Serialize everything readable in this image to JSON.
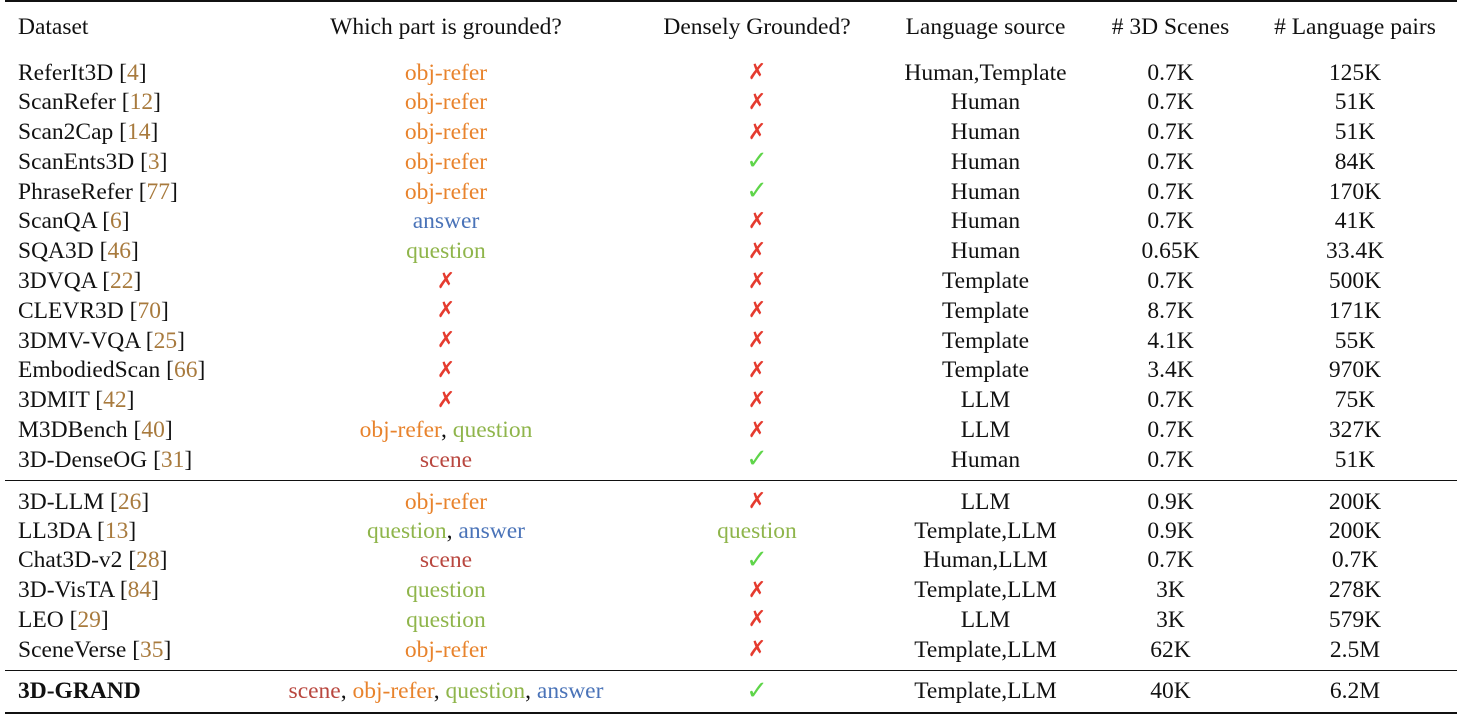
{
  "headers": [
    "Dataset",
    "Which part is grounded?",
    "Densely Grounded?",
    "Language source",
    "# 3D Scenes",
    "# Language pairs"
  ],
  "groups": [
    [
      {
        "name": "ReferIt3D",
        "ref": "4",
        "grounded": [
          {
            "t": "obj-refer",
            "c": "obj"
          }
        ],
        "dense": "cross",
        "source": "Human,Template",
        "scenes": "0.7K",
        "pairs": "125K"
      },
      {
        "name": "ScanRefer",
        "ref": "12",
        "grounded": [
          {
            "t": "obj-refer",
            "c": "obj"
          }
        ],
        "dense": "cross",
        "source": "Human",
        "scenes": "0.7K",
        "pairs": "51K"
      },
      {
        "name": "Scan2Cap",
        "ref": "14",
        "grounded": [
          {
            "t": "obj-refer",
            "c": "obj"
          }
        ],
        "dense": "cross",
        "source": "Human",
        "scenes": "0.7K",
        "pairs": "51K"
      },
      {
        "name": "ScanEnts3D",
        "ref": "3",
        "grounded": [
          {
            "t": "obj-refer",
            "c": "obj"
          }
        ],
        "dense": "check",
        "source": "Human",
        "scenes": "0.7K",
        "pairs": "84K"
      },
      {
        "name": "PhraseRefer",
        "ref": "77",
        "grounded": [
          {
            "t": "obj-refer",
            "c": "obj"
          }
        ],
        "dense": "check",
        "source": "Human",
        "scenes": "0.7K",
        "pairs": "170K"
      },
      {
        "name": "ScanQA",
        "ref": "6",
        "grounded": [
          {
            "t": "answer",
            "c": "ans"
          }
        ],
        "dense": "cross",
        "source": "Human",
        "scenes": "0.7K",
        "pairs": "41K"
      },
      {
        "name": "SQA3D",
        "ref": "46",
        "grounded": [
          {
            "t": "question",
            "c": "q"
          }
        ],
        "dense": "cross",
        "source": "Human",
        "scenes": "0.65K",
        "pairs": "33.4K"
      },
      {
        "name": "3DVQA",
        "ref": "22",
        "grounded": "cross",
        "dense": "cross",
        "source": "Template",
        "scenes": "0.7K",
        "pairs": "500K"
      },
      {
        "name": "CLEVR3D",
        "ref": "70",
        "grounded": "cross",
        "dense": "cross",
        "source": "Template",
        "scenes": "8.7K",
        "pairs": "171K"
      },
      {
        "name": "3DMV-VQA",
        "ref": "25",
        "grounded": "cross",
        "dense": "cross",
        "source": "Template",
        "scenes": "4.1K",
        "pairs": "55K"
      },
      {
        "name": "EmbodiedScan",
        "ref": "66",
        "grounded": "cross",
        "dense": "cross",
        "source": "Template",
        "scenes": "3.4K",
        "pairs": "970K"
      },
      {
        "name": "3DMIT",
        "ref": "42",
        "grounded": "cross",
        "dense": "cross",
        "source": "LLM",
        "scenes": "0.7K",
        "pairs": "75K"
      },
      {
        "name": "M3DBench",
        "ref": "40",
        "grounded": [
          {
            "t": "obj-refer",
            "c": "obj"
          },
          {
            "t": "question",
            "c": "q"
          }
        ],
        "dense": "cross",
        "source": "LLM",
        "scenes": "0.7K",
        "pairs": "327K"
      },
      {
        "name": "3D-DenseOG",
        "ref": "31",
        "grounded": [
          {
            "t": "scene",
            "c": "scene"
          }
        ],
        "dense": "check",
        "source": "Human",
        "scenes": "0.7K",
        "pairs": "51K"
      }
    ],
    [
      {
        "name": "3D-LLM",
        "ref": "26",
        "grounded": [
          {
            "t": "obj-refer",
            "c": "obj"
          }
        ],
        "dense": "cross",
        "source": "LLM",
        "scenes": "0.9K",
        "pairs": "200K"
      },
      {
        "name": "LL3DA",
        "ref": "13",
        "grounded": [
          {
            "t": "question",
            "c": "q"
          },
          {
            "t": "answer",
            "c": "ans"
          }
        ],
        "dense": {
          "t": "question",
          "c": "q"
        },
        "source": "Template,LLM",
        "scenes": "0.9K",
        "pairs": "200K"
      },
      {
        "name": "Chat3D-v2",
        "ref": "28",
        "grounded": [
          {
            "t": "scene",
            "c": "scene"
          }
        ],
        "dense": "check",
        "source": "Human,LLM",
        "scenes": "0.7K",
        "pairs": "0.7K"
      },
      {
        "name": "3D-VisTA",
        "ref": "84",
        "grounded": [
          {
            "t": "question",
            "c": "q"
          }
        ],
        "dense": "cross",
        "source": "Template,LLM",
        "scenes": "3K",
        "pairs": "278K"
      },
      {
        "name": "LEO",
        "ref": "29",
        "grounded": [
          {
            "t": "question",
            "c": "q"
          }
        ],
        "dense": "cross",
        "source": "LLM",
        "scenes": "3K",
        "pairs": "579K"
      },
      {
        "name": "SceneVerse",
        "ref": "35",
        "grounded": [
          {
            "t": "obj-refer",
            "c": "obj"
          }
        ],
        "dense": "cross",
        "source": "Template,LLM",
        "scenes": "62K",
        "pairs": "2.5M"
      }
    ],
    [
      {
        "name": "3D-GRAND",
        "ref": "",
        "bold": true,
        "grounded": [
          {
            "t": "scene",
            "c": "scene"
          },
          {
            "t": "obj-refer",
            "c": "obj"
          },
          {
            "t": "question",
            "c": "q"
          },
          {
            "t": "answer",
            "c": "ans"
          }
        ],
        "dense": "check",
        "source": "Template,LLM",
        "scenes": "40K",
        "pairs": "6.2M"
      }
    ]
  ],
  "symbols": {
    "cross": "✗",
    "check": "✓",
    "separator": ", "
  }
}
